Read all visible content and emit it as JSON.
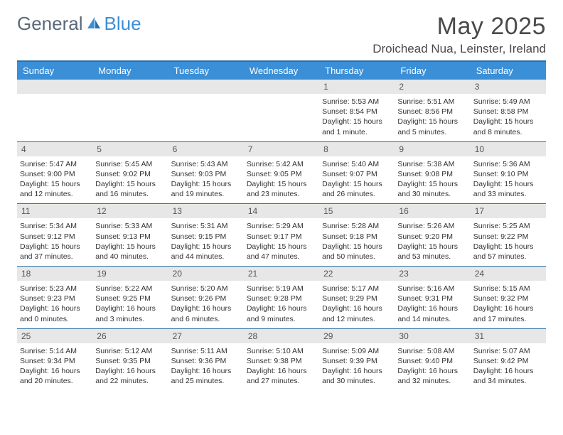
{
  "logo": {
    "word1": "General",
    "word2": "Blue",
    "word1_color": "#5a6a7a",
    "word2_color": "#3b8fd6",
    "icon_color": "#3b8fd6"
  },
  "title": "May 2025",
  "location": "Droichead Nua, Leinster, Ireland",
  "colors": {
    "header_bg": "#3b8fd6",
    "header_text": "#ffffff",
    "border": "#2b6fa3",
    "daynum_bg": "#e7e7e7",
    "body_text": "#333333"
  },
  "font": {
    "title_size": 34,
    "location_size": 17,
    "header_size": 13,
    "daynum_size": 12,
    "info_size": 10.5
  },
  "weekdays": [
    "Sunday",
    "Monday",
    "Tuesday",
    "Wednesday",
    "Thursday",
    "Friday",
    "Saturday"
  ],
  "weeks": [
    [
      {
        "empty": true
      },
      {
        "empty": true
      },
      {
        "empty": true
      },
      {
        "empty": true
      },
      {
        "num": "1",
        "sunrise": "Sunrise: 5:53 AM",
        "sunset": "Sunset: 8:54 PM",
        "daylight": "Daylight: 15 hours and 1 minute."
      },
      {
        "num": "2",
        "sunrise": "Sunrise: 5:51 AM",
        "sunset": "Sunset: 8:56 PM",
        "daylight": "Daylight: 15 hours and 5 minutes."
      },
      {
        "num": "3",
        "sunrise": "Sunrise: 5:49 AM",
        "sunset": "Sunset: 8:58 PM",
        "daylight": "Daylight: 15 hours and 8 minutes."
      }
    ],
    [
      {
        "num": "4",
        "sunrise": "Sunrise: 5:47 AM",
        "sunset": "Sunset: 9:00 PM",
        "daylight": "Daylight: 15 hours and 12 minutes."
      },
      {
        "num": "5",
        "sunrise": "Sunrise: 5:45 AM",
        "sunset": "Sunset: 9:02 PM",
        "daylight": "Daylight: 15 hours and 16 minutes."
      },
      {
        "num": "6",
        "sunrise": "Sunrise: 5:43 AM",
        "sunset": "Sunset: 9:03 PM",
        "daylight": "Daylight: 15 hours and 19 minutes."
      },
      {
        "num": "7",
        "sunrise": "Sunrise: 5:42 AM",
        "sunset": "Sunset: 9:05 PM",
        "daylight": "Daylight: 15 hours and 23 minutes."
      },
      {
        "num": "8",
        "sunrise": "Sunrise: 5:40 AM",
        "sunset": "Sunset: 9:07 PM",
        "daylight": "Daylight: 15 hours and 26 minutes."
      },
      {
        "num": "9",
        "sunrise": "Sunrise: 5:38 AM",
        "sunset": "Sunset: 9:08 PM",
        "daylight": "Daylight: 15 hours and 30 minutes."
      },
      {
        "num": "10",
        "sunrise": "Sunrise: 5:36 AM",
        "sunset": "Sunset: 9:10 PM",
        "daylight": "Daylight: 15 hours and 33 minutes."
      }
    ],
    [
      {
        "num": "11",
        "sunrise": "Sunrise: 5:34 AM",
        "sunset": "Sunset: 9:12 PM",
        "daylight": "Daylight: 15 hours and 37 minutes."
      },
      {
        "num": "12",
        "sunrise": "Sunrise: 5:33 AM",
        "sunset": "Sunset: 9:13 PM",
        "daylight": "Daylight: 15 hours and 40 minutes."
      },
      {
        "num": "13",
        "sunrise": "Sunrise: 5:31 AM",
        "sunset": "Sunset: 9:15 PM",
        "daylight": "Daylight: 15 hours and 44 minutes."
      },
      {
        "num": "14",
        "sunrise": "Sunrise: 5:29 AM",
        "sunset": "Sunset: 9:17 PM",
        "daylight": "Daylight: 15 hours and 47 minutes."
      },
      {
        "num": "15",
        "sunrise": "Sunrise: 5:28 AM",
        "sunset": "Sunset: 9:18 PM",
        "daylight": "Daylight: 15 hours and 50 minutes."
      },
      {
        "num": "16",
        "sunrise": "Sunrise: 5:26 AM",
        "sunset": "Sunset: 9:20 PM",
        "daylight": "Daylight: 15 hours and 53 minutes."
      },
      {
        "num": "17",
        "sunrise": "Sunrise: 5:25 AM",
        "sunset": "Sunset: 9:22 PM",
        "daylight": "Daylight: 15 hours and 57 minutes."
      }
    ],
    [
      {
        "num": "18",
        "sunrise": "Sunrise: 5:23 AM",
        "sunset": "Sunset: 9:23 PM",
        "daylight": "Daylight: 16 hours and 0 minutes."
      },
      {
        "num": "19",
        "sunrise": "Sunrise: 5:22 AM",
        "sunset": "Sunset: 9:25 PM",
        "daylight": "Daylight: 16 hours and 3 minutes."
      },
      {
        "num": "20",
        "sunrise": "Sunrise: 5:20 AM",
        "sunset": "Sunset: 9:26 PM",
        "daylight": "Daylight: 16 hours and 6 minutes."
      },
      {
        "num": "21",
        "sunrise": "Sunrise: 5:19 AM",
        "sunset": "Sunset: 9:28 PM",
        "daylight": "Daylight: 16 hours and 9 minutes."
      },
      {
        "num": "22",
        "sunrise": "Sunrise: 5:17 AM",
        "sunset": "Sunset: 9:29 PM",
        "daylight": "Daylight: 16 hours and 12 minutes."
      },
      {
        "num": "23",
        "sunrise": "Sunrise: 5:16 AM",
        "sunset": "Sunset: 9:31 PM",
        "daylight": "Daylight: 16 hours and 14 minutes."
      },
      {
        "num": "24",
        "sunrise": "Sunrise: 5:15 AM",
        "sunset": "Sunset: 9:32 PM",
        "daylight": "Daylight: 16 hours and 17 minutes."
      }
    ],
    [
      {
        "num": "25",
        "sunrise": "Sunrise: 5:14 AM",
        "sunset": "Sunset: 9:34 PM",
        "daylight": "Daylight: 16 hours and 20 minutes."
      },
      {
        "num": "26",
        "sunrise": "Sunrise: 5:12 AM",
        "sunset": "Sunset: 9:35 PM",
        "daylight": "Daylight: 16 hours and 22 minutes."
      },
      {
        "num": "27",
        "sunrise": "Sunrise: 5:11 AM",
        "sunset": "Sunset: 9:36 PM",
        "daylight": "Daylight: 16 hours and 25 minutes."
      },
      {
        "num": "28",
        "sunrise": "Sunrise: 5:10 AM",
        "sunset": "Sunset: 9:38 PM",
        "daylight": "Daylight: 16 hours and 27 minutes."
      },
      {
        "num": "29",
        "sunrise": "Sunrise: 5:09 AM",
        "sunset": "Sunset: 9:39 PM",
        "daylight": "Daylight: 16 hours and 30 minutes."
      },
      {
        "num": "30",
        "sunrise": "Sunrise: 5:08 AM",
        "sunset": "Sunset: 9:40 PM",
        "daylight": "Daylight: 16 hours and 32 minutes."
      },
      {
        "num": "31",
        "sunrise": "Sunrise: 5:07 AM",
        "sunset": "Sunset: 9:42 PM",
        "daylight": "Daylight: 16 hours and 34 minutes."
      }
    ]
  ]
}
